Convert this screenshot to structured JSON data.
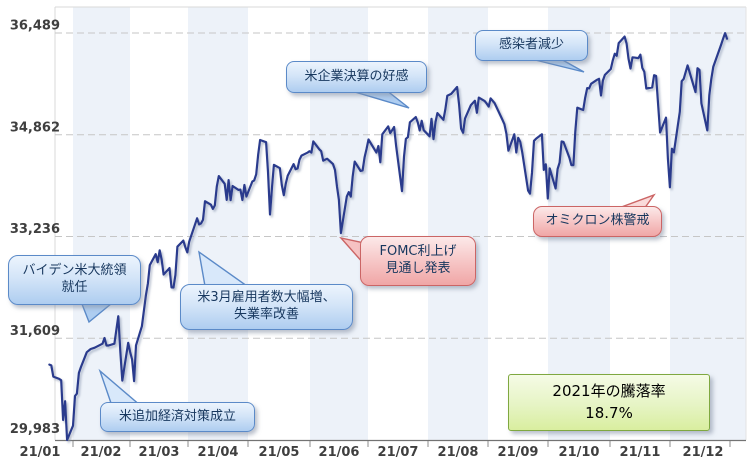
{
  "chart_data": {
    "type": "line",
    "description": "Stock index daily closes for 2021 (NY Dow style chart) with event callouts",
    "x_tick_labels": [
      "21/01",
      "21/02",
      "21/03",
      "21/04",
      "21/05",
      "21/06",
      "21/07",
      "21/08",
      "21/09",
      "21/10",
      "21/11",
      "21/12"
    ],
    "y_tick_labels": [
      "36,489",
      "34,862",
      "33,236",
      "31,609",
      "29,983"
    ],
    "y_tick_values": [
      36489,
      34862,
      33236,
      31609,
      29983
    ],
    "ylim": [
      29983,
      36489
    ],
    "grid": "dashed-horizontal",
    "line_color": "#2A3B8D",
    "band_color": "#EDF2F9",
    "points_format": "[day_of_year_2021, close_value]",
    "points": [
      [
        20,
        31188
      ],
      [
        21,
        31176
      ],
      [
        22,
        30997
      ],
      [
        25,
        30960
      ],
      [
        26,
        30937
      ],
      [
        27,
        30303
      ],
      [
        28,
        30603
      ],
      [
        29,
        29983
      ],
      [
        32,
        30212
      ],
      [
        33,
        30687
      ],
      [
        34,
        30724
      ],
      [
        35,
        31056
      ],
      [
        36,
        31148
      ],
      [
        39,
        31386
      ],
      [
        41,
        31438
      ],
      [
        43,
        31458
      ],
      [
        47,
        31523
      ],
      [
        48,
        31613
      ],
      [
        49,
        31493
      ],
      [
        50,
        31494
      ],
      [
        53,
        31522
      ],
      [
        55,
        31962
      ],
      [
        56,
        31402
      ],
      [
        57,
        30932
      ],
      [
        60,
        31536
      ],
      [
        61,
        31392
      ],
      [
        62,
        31270
      ],
      [
        63,
        30924
      ],
      [
        64,
        31496
      ],
      [
        67,
        31802
      ],
      [
        69,
        32297
      ],
      [
        70,
        32486
      ],
      [
        71,
        32779
      ],
      [
        74,
        32953
      ],
      [
        75,
        32825
      ],
      [
        76,
        33015
      ],
      [
        77,
        32862
      ],
      [
        78,
        32628
      ],
      [
        81,
        32731
      ],
      [
        82,
        32423
      ],
      [
        83,
        32420
      ],
      [
        84,
        32619
      ],
      [
        85,
        33073
      ],
      [
        88,
        33171
      ],
      [
        89,
        33067
      ],
      [
        90,
        32982
      ],
      [
        91,
        33153
      ],
      [
        95,
        33527
      ],
      [
        96,
        33430
      ],
      [
        97,
        33446
      ],
      [
        98,
        33504
      ],
      [
        99,
        33801
      ],
      [
        102,
        33745
      ],
      [
        103,
        33677
      ],
      [
        104,
        33731
      ],
      [
        105,
        34036
      ],
      [
        106,
        34201
      ],
      [
        109,
        34078
      ],
      [
        110,
        33821
      ],
      [
        111,
        34137
      ],
      [
        112,
        33816
      ],
      [
        113,
        34043
      ],
      [
        116,
        33981
      ],
      [
        117,
        33985
      ],
      [
        118,
        33820
      ],
      [
        119,
        34060
      ],
      [
        120,
        33875
      ],
      [
        123,
        34113
      ],
      [
        124,
        34133
      ],
      [
        125,
        34230
      ],
      [
        126,
        34549
      ],
      [
        127,
        34778
      ],
      [
        130,
        34743
      ],
      [
        131,
        34269
      ],
      [
        132,
        33587
      ],
      [
        133,
        34021
      ],
      [
        134,
        34382
      ],
      [
        137,
        34328
      ],
      [
        138,
        34060
      ],
      [
        139,
        33896
      ],
      [
        140,
        34084
      ],
      [
        141,
        34208
      ],
      [
        144,
        34394
      ],
      [
        145,
        34312
      ],
      [
        146,
        34323
      ],
      [
        147,
        34464
      ],
      [
        148,
        34529
      ],
      [
        151,
        34575
      ],
      [
        152,
        34600
      ],
      [
        153,
        34577
      ],
      [
        154,
        34756
      ],
      [
        157,
        34630
      ],
      [
        158,
        34600
      ],
      [
        159,
        34447
      ],
      [
        160,
        34466
      ],
      [
        161,
        34480
      ],
      [
        164,
        34394
      ],
      [
        165,
        34299
      ],
      [
        166,
        34034
      ],
      [
        167,
        33823
      ],
      [
        168,
        33290
      ],
      [
        171,
        33876
      ],
      [
        172,
        33945
      ],
      [
        173,
        33874
      ],
      [
        174,
        34196
      ],
      [
        175,
        34434
      ],
      [
        178,
        34283
      ],
      [
        179,
        34292
      ],
      [
        180,
        34503
      ],
      [
        181,
        34633
      ],
      [
        182,
        34786
      ],
      [
        186,
        34577
      ],
      [
        187,
        34682
      ],
      [
        188,
        34422
      ],
      [
        189,
        34870
      ],
      [
        192,
        34996
      ],
      [
        193,
        34889
      ],
      [
        194,
        34933
      ],
      [
        195,
        34987
      ],
      [
        196,
        34688
      ],
      [
        199,
        33962
      ],
      [
        200,
        34512
      ],
      [
        201,
        34798
      ],
      [
        202,
        34823
      ],
      [
        203,
        35062
      ],
      [
        206,
        35144
      ],
      [
        207,
        35058
      ],
      [
        208,
        34931
      ],
      [
        209,
        35085
      ],
      [
        210,
        34935
      ],
      [
        213,
        34838
      ],
      [
        214,
        35116
      ],
      [
        215,
        34793
      ],
      [
        216,
        35064
      ],
      [
        217,
        35209
      ],
      [
        220,
        35102
      ],
      [
        221,
        35265
      ],
      [
        222,
        35485
      ],
      [
        224,
        35515
      ],
      [
        227,
        35625
      ],
      [
        228,
        35343
      ],
      [
        229,
        34961
      ],
      [
        230,
        34894
      ],
      [
        231,
        35120
      ],
      [
        234,
        35336
      ],
      [
        236,
        35405
      ],
      [
        237,
        35213
      ],
      [
        238,
        35456
      ],
      [
        241,
        35400
      ],
      [
        242,
        35361
      ],
      [
        243,
        35313
      ],
      [
        244,
        35444
      ],
      [
        246,
        35369
      ],
      [
        250,
        35100
      ],
      [
        251,
        35031
      ],
      [
        252,
        34879
      ],
      [
        253,
        34608
      ],
      [
        256,
        34870
      ],
      [
        257,
        34578
      ],
      [
        258,
        34814
      ],
      [
        259,
        34751
      ],
      [
        260,
        34585
      ],
      [
        263,
        33970
      ],
      [
        264,
        33920
      ],
      [
        265,
        34258
      ],
      [
        266,
        34765
      ],
      [
        267,
        34798
      ],
      [
        270,
        34869
      ],
      [
        271,
        34300
      ],
      [
        272,
        34390
      ],
      [
        273,
        33844
      ],
      [
        274,
        34326
      ],
      [
        277,
        34003
      ],
      [
        278,
        34315
      ],
      [
        279,
        34417
      ],
      [
        280,
        34755
      ],
      [
        281,
        34746
      ],
      [
        284,
        34496
      ],
      [
        285,
        34378
      ],
      [
        286,
        34377
      ],
      [
        287,
        34913
      ],
      [
        288,
        35295
      ],
      [
        291,
        35258
      ],
      [
        292,
        35457
      ],
      [
        293,
        35609
      ],
      [
        294,
        35603
      ],
      [
        295,
        35677
      ],
      [
        298,
        35741
      ],
      [
        299,
        35757
      ],
      [
        300,
        35490
      ],
      [
        301,
        35730
      ],
      [
        302,
        35820
      ],
      [
        305,
        35914
      ],
      [
        306,
        36053
      ],
      [
        307,
        36158
      ],
      [
        308,
        36124
      ],
      [
        309,
        36328
      ],
      [
        312,
        36432
      ],
      [
        313,
        36320
      ],
      [
        314,
        36080
      ],
      [
        315,
        35921
      ],
      [
        316,
        36100
      ],
      [
        319,
        36087
      ],
      [
        320,
        36142
      ],
      [
        321,
        35931
      ],
      [
        322,
        35871
      ],
      [
        323,
        35602
      ],
      [
        326,
        35619
      ],
      [
        327,
        35814
      ],
      [
        328,
        35804
      ],
      [
        330,
        34899
      ],
      [
        333,
        35136
      ],
      [
        334,
        34484
      ],
      [
        335,
        34022
      ],
      [
        336,
        34640
      ],
      [
        337,
        34580
      ],
      [
        340,
        35227
      ],
      [
        341,
        35719
      ],
      [
        342,
        35755
      ],
      [
        344,
        35971
      ],
      [
        347,
        35651
      ],
      [
        348,
        35545
      ],
      [
        349,
        35927
      ],
      [
        350,
        35898
      ],
      [
        351,
        35365
      ],
      [
        354,
        34932
      ],
      [
        355,
        35493
      ],
      [
        356,
        35754
      ],
      [
        357,
        35950
      ],
      [
        361,
        36302
      ],
      [
        362,
        36398
      ],
      [
        363,
        36488
      ],
      [
        364,
        36398
      ]
    ],
    "annotations": [
      "バイデン米大統領就任",
      "米追加経済対策成立",
      "米3月雇用者数大幅増、失業率改善",
      "米企業決算の好感",
      "FOMC利上げ見通し発表",
      "感染者減少",
      "オミクロン株警戒",
      "2021年の騰落率 18.7%"
    ]
  },
  "callouts": {
    "biden": {
      "line1": "バイデン米大統領",
      "line2": "就任",
      "color": "blue"
    },
    "relief": {
      "line1": "米追加経済対策成立",
      "color": "blue"
    },
    "jobs": {
      "line1": "米3月雇用者数大幅増、",
      "line2": "失業率改善",
      "color": "blue"
    },
    "earnings": {
      "line1": "米企業決算の好感",
      "color": "blue"
    },
    "fomc": {
      "line1": "FOMC利上げ",
      "line2": "見通し発表",
      "color": "red"
    },
    "infections": {
      "line1": "感染者減少",
      "color": "blue"
    },
    "omicron": {
      "line1": "オミクロン株警戒",
      "color": "red"
    }
  },
  "performance_box": {
    "line1": "2021年の騰落率",
    "line2": "18.7%"
  },
  "colors": {
    "line": "#2A3B8D",
    "band": "#EDF2F9",
    "grid": "#C6C6C6",
    "axis": "#737373",
    "axis_text": "#3F3F3F",
    "blue_callout_border": "#5B8AC8",
    "red_callout_border": "#CB6565",
    "green_box_border": "#7FA840"
  }
}
